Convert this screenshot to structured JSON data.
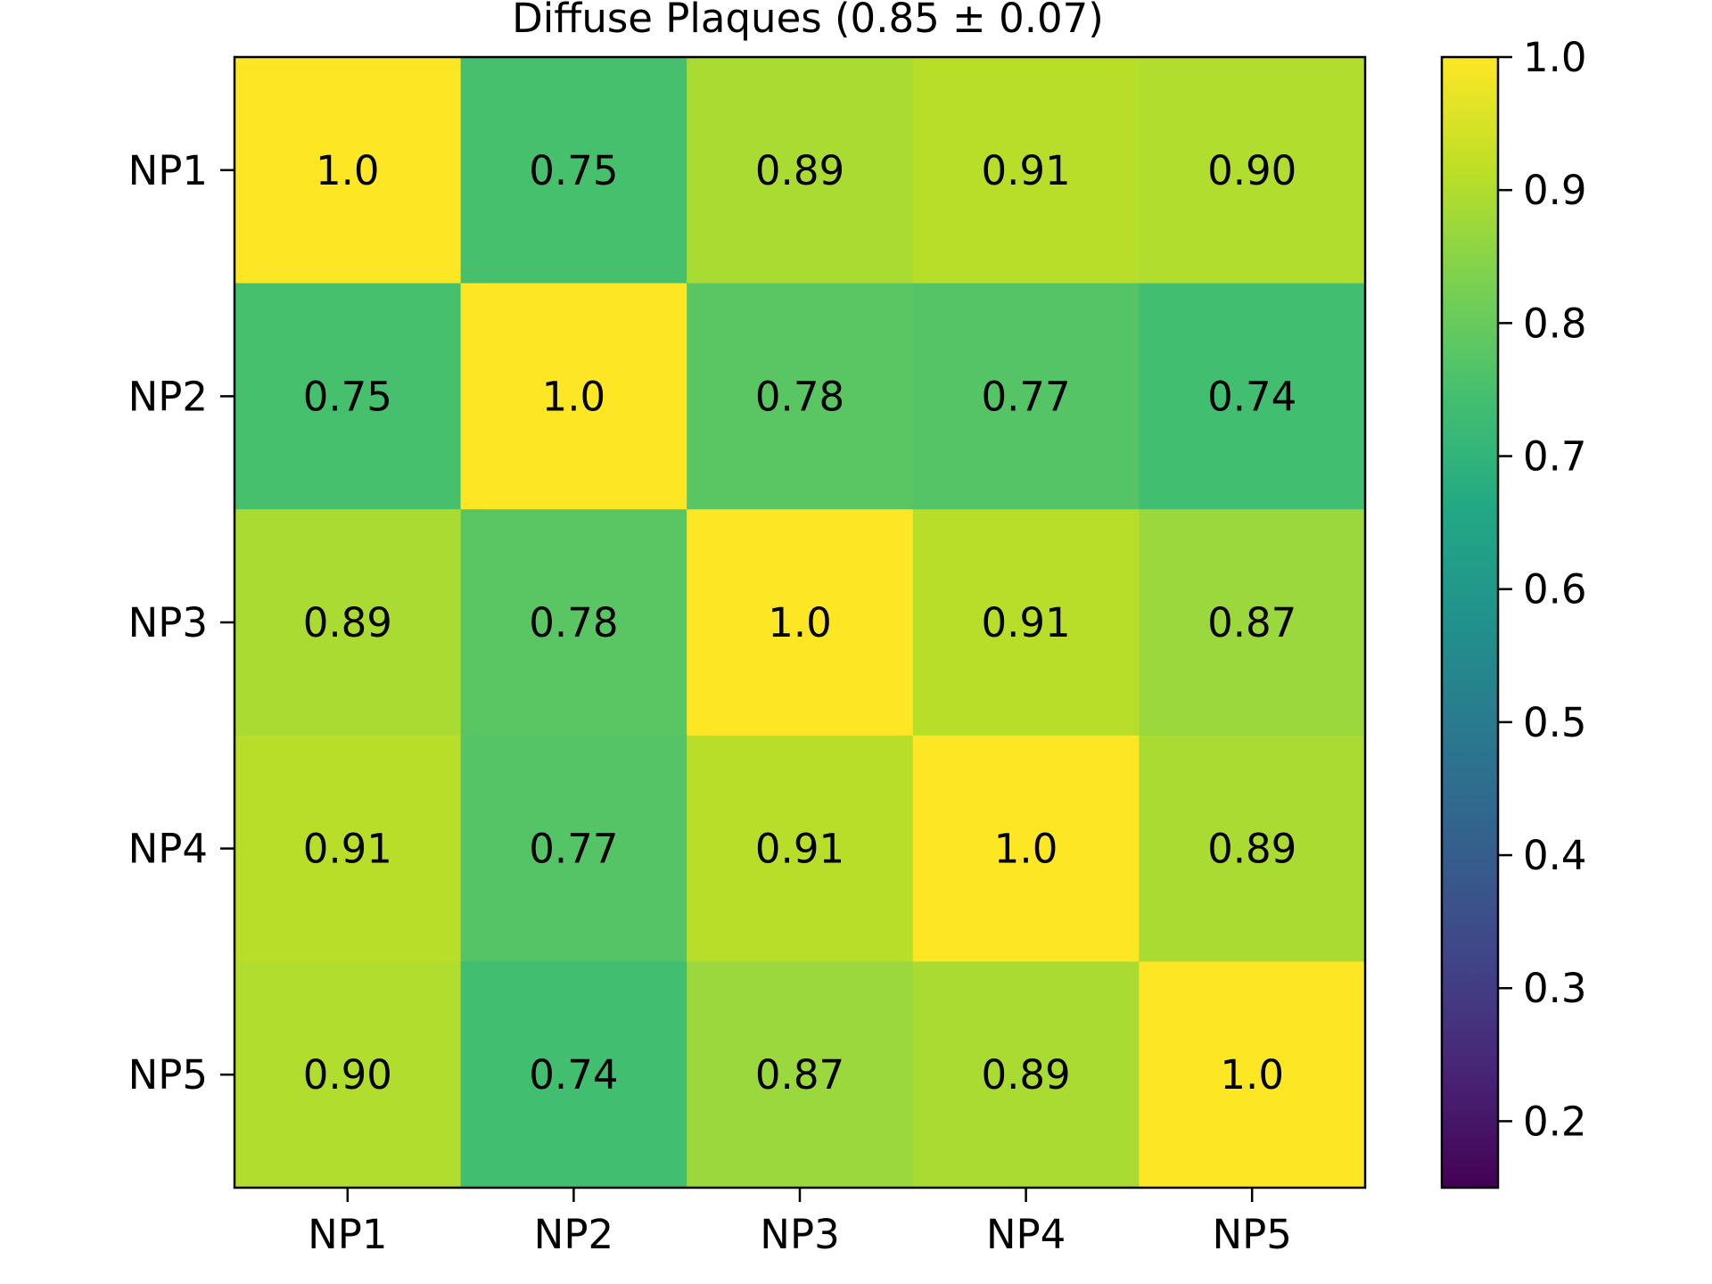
{
  "chart_data": {
    "type": "heatmap",
    "title": "Diffuse Plaques (0.85 ± 0.07)",
    "x_categories": [
      "NP1",
      "NP2",
      "NP3",
      "NP4",
      "NP5"
    ],
    "y_categories": [
      "NP1",
      "NP2",
      "NP3",
      "NP4",
      "NP5"
    ],
    "values": [
      [
        1.0,
        0.75,
        0.89,
        0.91,
        0.9
      ],
      [
        0.75,
        1.0,
        0.78,
        0.77,
        0.74
      ],
      [
        0.89,
        0.78,
        1.0,
        0.91,
        0.87
      ],
      [
        0.91,
        0.77,
        0.91,
        1.0,
        0.89
      ],
      [
        0.9,
        0.74,
        0.87,
        0.89,
        1.0
      ]
    ],
    "value_labels": [
      [
        "1.0",
        "0.75",
        "0.89",
        "0.91",
        "0.90"
      ],
      [
        "0.75",
        "1.0",
        "0.78",
        "0.77",
        "0.74"
      ],
      [
        "0.89",
        "0.78",
        "1.0",
        "0.91",
        "0.87"
      ],
      [
        "0.91",
        "0.77",
        "0.91",
        "1.0",
        "0.89"
      ],
      [
        "0.90",
        "0.74",
        "0.87",
        "0.89",
        "1.0"
      ]
    ],
    "colormap": "viridis",
    "color_range": [
      0.15,
      1.0
    ],
    "colorbar_ticks": [
      "0.2",
      "0.3",
      "0.4",
      "0.5",
      "0.6",
      "0.7",
      "0.8",
      "0.9",
      "1.0"
    ],
    "colorbar_tick_values": [
      0.2,
      0.3,
      0.4,
      0.5,
      0.6,
      0.7,
      0.8,
      0.9,
      1.0
    ],
    "grid": false,
    "legend": "colorbar-right"
  }
}
